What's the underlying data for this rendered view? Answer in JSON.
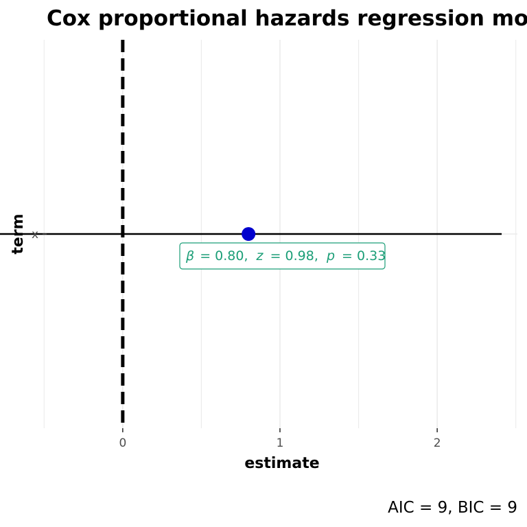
{
  "chart_data": {
    "type": "scatter",
    "title": "Cox proportional hazards regression model",
    "xlabel": "estimate",
    "ylabel": "term",
    "categories": [
      "x"
    ],
    "series": [
      {
        "values": [
          {
            "term": "x",
            "estimate": 0.8,
            "conf_low": -0.81,
            "conf_high": 2.41
          }
        ]
      }
    ],
    "x_ticks": [
      0,
      1,
      2
    ],
    "xlim": [
      -0.51,
      2.51
    ],
    "reference_line": 0,
    "annotation": {
      "beta_symbol": "β",
      "beta": "= 0.80,",
      "z_symbol": "z",
      "z": "= 0.98,",
      "p_symbol": "p",
      "p": "= 0.33"
    },
    "caption": "AIC = 9, BIC = 9",
    "grid": true,
    "legend": "none",
    "colors": {
      "point": "#0000cd",
      "errorbar": "#000000",
      "reference_line": "#000000",
      "annotation": "#1b9e77",
      "grid": "#ebebeb"
    }
  }
}
